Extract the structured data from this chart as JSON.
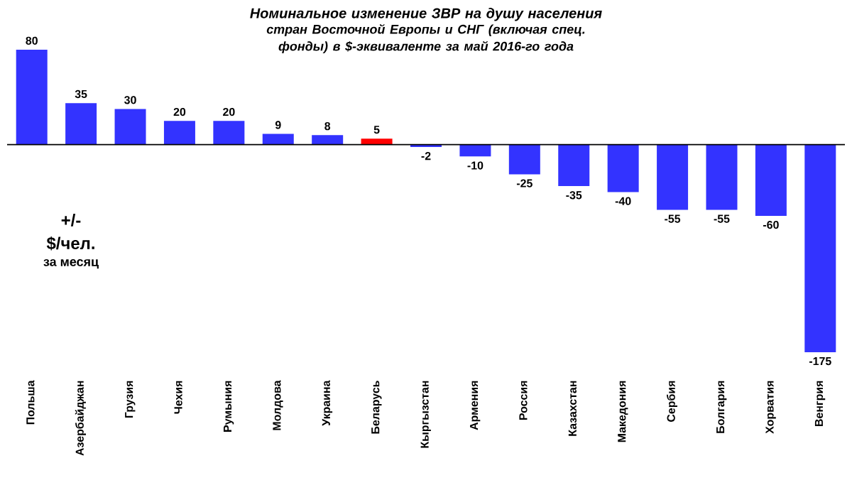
{
  "chart_data": {
    "type": "bar",
    "title": "Номинальное изменение ЗВР на душу населения",
    "subtitle": "стран Восточной Европы и СНГ (включая спец. фонды) в $-эквиваленте за май 2016-го года",
    "categories": [
      "Польша",
      "Азербайджан",
      "Грузия",
      "Чехия",
      "Румыния",
      "Молдова",
      "Украина",
      "Беларусь",
      "Кыргызстан",
      "Армения",
      "Россия",
      "Казахстан",
      "Македония",
      "Сербия",
      "Болгария",
      "Хорватия",
      "Венгрия"
    ],
    "values": [
      80,
      35,
      30,
      20,
      20,
      9,
      8,
      5,
      -2,
      -10,
      -25,
      -35,
      -40,
      -55,
      -55,
      -60,
      -175
    ],
    "colors": [
      "#3333ff",
      "#3333ff",
      "#3333ff",
      "#3333ff",
      "#3333ff",
      "#3333ff",
      "#3333ff",
      "#ff0000",
      "#3333ff",
      "#3333ff",
      "#3333ff",
      "#3333ff",
      "#3333ff",
      "#3333ff",
      "#3333ff",
      "#3333ff",
      "#3333ff"
    ],
    "data_labels": true,
    "annotations": [
      "+/-",
      "$/чел.",
      "за месяц"
    ]
  }
}
